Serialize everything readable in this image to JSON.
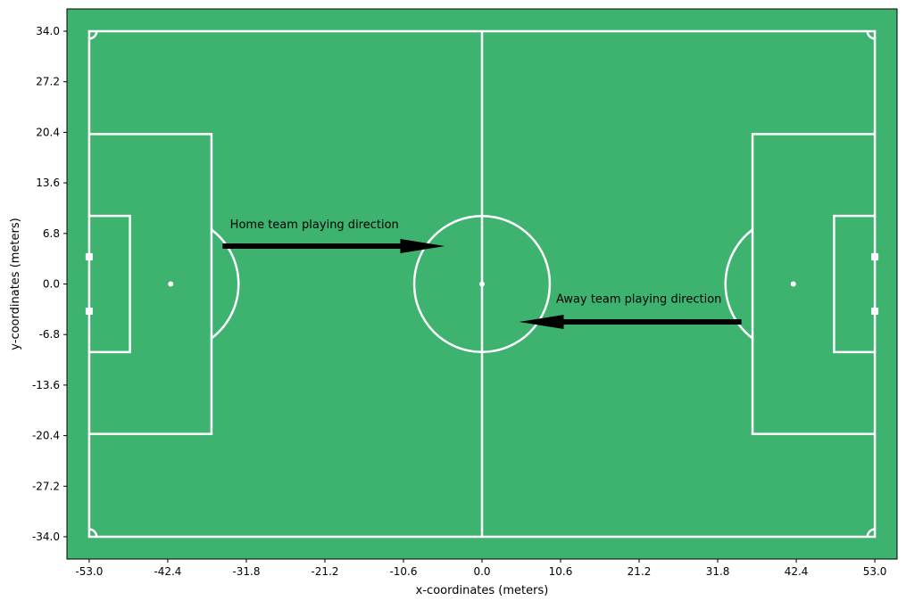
{
  "chart_data": {
    "type": "pitch-diagram",
    "xlabel": "x-coordinates (meters)",
    "ylabel": "y-coordinates (meters)",
    "xlim": [
      -56.0,
      56.0
    ],
    "ylim": [
      -37.0,
      37.0
    ],
    "x_ticks": [
      -53.0,
      -42.4,
      -31.8,
      -21.2,
      -10.6,
      0.0,
      10.6,
      21.2,
      31.8,
      42.4,
      53.0
    ],
    "y_ticks": [
      34.0,
      27.2,
      20.4,
      13.6,
      6.8,
      0.0,
      -6.8,
      -13.6,
      -20.4,
      -27.2,
      -34.0
    ],
    "x_tick_labels": [
      "-53.0",
      "-42.4",
      "-31.8",
      "-21.2",
      "-10.6",
      "0.0",
      "10.6",
      "21.2",
      "31.8",
      "42.4",
      "53.0"
    ],
    "y_tick_labels": [
      "34.0",
      "27.2",
      "20.4",
      "13.6",
      "6.8",
      "0.0",
      "-6.8",
      "-13.6",
      "-20.4",
      "-27.2",
      "-34.0"
    ],
    "pitch": {
      "length": 106,
      "width": 68,
      "center_circle_radius": 9.15,
      "penalty_area_depth": 16.5,
      "penalty_area_half_width": 20.16,
      "goal_area_depth": 5.5,
      "goal_area_half_width": 9.16,
      "penalty_spot_distance": 11,
      "goal_half_width": 3.66,
      "corner_arc_radius": 1
    },
    "annotations": [
      {
        "text": "Home team playing direction",
        "text_x": -34,
        "text_y": 7.5,
        "arrow_from": [
          -35,
          5.1
        ],
        "arrow_to": [
          -5,
          5.1
        ]
      },
      {
        "text": "Away team playing direction",
        "text_x": 10,
        "text_y": -2.5,
        "arrow_from": [
          35,
          -5.1
        ],
        "arrow_to": [
          5,
          -5.1
        ]
      }
    ],
    "colors": {
      "pitch": "#3eb370",
      "lines": "#ffffff",
      "arrow": "#000000"
    },
    "grid": false
  }
}
